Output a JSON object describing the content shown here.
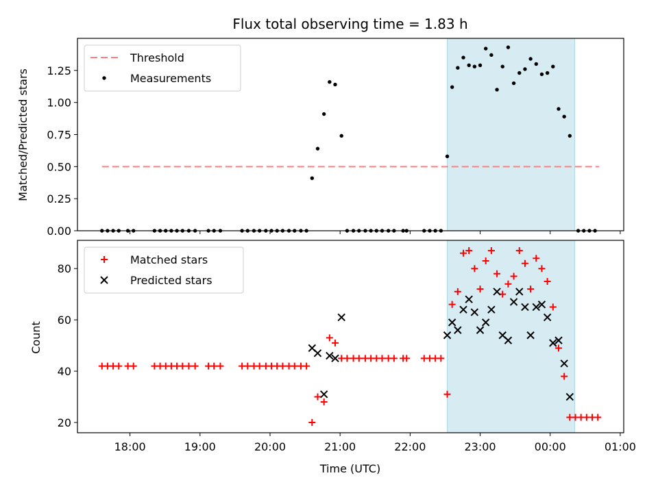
{
  "chart_data": [
    {
      "type": "scatter",
      "title": "Flux total observing time = 1.83 h",
      "xlabel": "",
      "ylabel": "Matched/Predicted stars",
      "x_unit": "hours after 00:00 UTC (next day wraps past 24)",
      "xlim": [
        17.25,
        25.05
      ],
      "ylim": [
        0,
        1.5
      ],
      "yticks": [
        0,
        0.25,
        0.5,
        0.75,
        1.0,
        1.25
      ],
      "ytick_labels": [
        "0.00",
        "0.25",
        "0.50",
        "0.75",
        "1.00",
        "1.25"
      ],
      "legend": {
        "placement": "top-left",
        "entries": [
          "Threshold",
          "Measurements"
        ]
      },
      "shaded_interval": {
        "from": 22.53,
        "to": 24.35,
        "color": "#add8e6"
      },
      "threshold": {
        "name": "Threshold",
        "value": 0.5,
        "x_from": 17.6,
        "x_to": 24.7,
        "color": "#ff7f7f",
        "style": "dashed"
      },
      "series": [
        {
          "name": "Measurements",
          "marker": "dot",
          "color": "#000000",
          "points": [
            [
              17.6,
              0
            ],
            [
              17.68,
              0
            ],
            [
              17.76,
              0
            ],
            [
              17.84,
              0
            ],
            [
              17.97,
              0
            ],
            [
              18.05,
              0
            ],
            [
              18.35,
              0
            ],
            [
              18.43,
              0
            ],
            [
              18.51,
              0
            ],
            [
              18.59,
              0
            ],
            [
              18.67,
              0
            ],
            [
              18.75,
              0
            ],
            [
              18.84,
              0
            ],
            [
              18.93,
              0
            ],
            [
              19.12,
              0
            ],
            [
              19.2,
              0
            ],
            [
              19.29,
              0
            ],
            [
              19.6,
              0
            ],
            [
              19.68,
              0
            ],
            [
              19.77,
              0
            ],
            [
              19.85,
              0
            ],
            [
              19.94,
              0
            ],
            [
              20.02,
              0
            ],
            [
              20.1,
              0
            ],
            [
              20.18,
              0
            ],
            [
              20.27,
              0
            ],
            [
              20.35,
              0
            ],
            [
              20.44,
              0
            ],
            [
              20.52,
              0
            ],
            [
              20.6,
              0.41
            ],
            [
              20.68,
              0.64
            ],
            [
              20.77,
              0.91
            ],
            [
              20.85,
              1.16
            ],
            [
              20.93,
              1.14
            ],
            [
              21.02,
              0.74
            ],
            [
              21.1,
              0
            ],
            [
              21.19,
              0
            ],
            [
              21.27,
              0
            ],
            [
              21.36,
              0
            ],
            [
              21.44,
              0
            ],
            [
              21.52,
              0
            ],
            [
              21.6,
              0
            ],
            [
              21.69,
              0
            ],
            [
              21.77,
              0
            ],
            [
              21.9,
              0
            ],
            [
              21.95,
              0
            ],
            [
              22.2,
              0
            ],
            [
              22.28,
              0
            ],
            [
              22.36,
              0
            ],
            [
              22.44,
              0
            ],
            [
              22.53,
              0.58
            ],
            [
              22.6,
              1.12
            ],
            [
              22.68,
              1.27
            ],
            [
              22.76,
              1.35
            ],
            [
              22.84,
              1.29
            ],
            [
              22.92,
              1.28
            ],
            [
              23.0,
              1.29
            ],
            [
              23.08,
              1.42
            ],
            [
              23.16,
              1.37
            ],
            [
              23.24,
              1.1
            ],
            [
              23.32,
              1.28
            ],
            [
              23.4,
              1.43
            ],
            [
              23.48,
              1.15
            ],
            [
              23.56,
              1.23
            ],
            [
              23.64,
              1.26
            ],
            [
              23.72,
              1.34
            ],
            [
              23.8,
              1.3
            ],
            [
              23.88,
              1.22
            ],
            [
              23.96,
              1.23
            ],
            [
              24.04,
              1.28
            ],
            [
              24.12,
              0.95
            ],
            [
              24.2,
              0.89
            ],
            [
              24.28,
              0.74
            ],
            [
              24.4,
              0
            ],
            [
              24.48,
              0
            ],
            [
              24.56,
              0
            ],
            [
              24.64,
              0
            ]
          ]
        }
      ]
    },
    {
      "type": "scatter",
      "title": "",
      "xlabel": "Time (UTC)",
      "ylabel": "Count",
      "x_unit": "hours after 00:00 UTC (next day wraps past 24)",
      "xlim": [
        17.25,
        25.05
      ],
      "ylim": [
        16,
        91
      ],
      "yticks": [
        20,
        40,
        60,
        80
      ],
      "ytick_labels": [
        "20",
        "40",
        "60",
        "80"
      ],
      "xticks": [
        18,
        19,
        20,
        21,
        22,
        23,
        24,
        25
      ],
      "xtick_labels": [
        "18:00",
        "19:00",
        "20:00",
        "21:00",
        "22:00",
        "23:00",
        "00:00",
        "01:00"
      ],
      "legend": {
        "placement": "top-left",
        "entries": [
          "Matched stars",
          "Predicted stars"
        ]
      },
      "shaded_interval": {
        "from": 22.53,
        "to": 24.35,
        "color": "#add8e6"
      },
      "series": [
        {
          "name": "Matched stars",
          "marker": "plus",
          "color": "#ff0000",
          "points": [
            [
              17.6,
              42
            ],
            [
              17.68,
              42
            ],
            [
              17.76,
              42
            ],
            [
              17.84,
              42
            ],
            [
              17.97,
              42
            ],
            [
              18.05,
              42
            ],
            [
              18.35,
              42
            ],
            [
              18.43,
              42
            ],
            [
              18.51,
              42
            ],
            [
              18.59,
              42
            ],
            [
              18.67,
              42
            ],
            [
              18.75,
              42
            ],
            [
              18.84,
              42
            ],
            [
              18.93,
              42
            ],
            [
              19.12,
              42
            ],
            [
              19.2,
              42
            ],
            [
              19.29,
              42
            ],
            [
              19.6,
              42
            ],
            [
              19.68,
              42
            ],
            [
              19.77,
              42
            ],
            [
              19.85,
              42
            ],
            [
              19.94,
              42
            ],
            [
              20.02,
              42
            ],
            [
              20.1,
              42
            ],
            [
              20.18,
              42
            ],
            [
              20.27,
              42
            ],
            [
              20.35,
              42
            ],
            [
              20.44,
              42
            ],
            [
              20.52,
              42
            ],
            [
              20.6,
              20
            ],
            [
              20.68,
              30
            ],
            [
              20.77,
              28
            ],
            [
              20.85,
              53
            ],
            [
              20.93,
              51
            ],
            [
              21.02,
              45
            ],
            [
              21.1,
              45
            ],
            [
              21.19,
              45
            ],
            [
              21.27,
              45
            ],
            [
              21.36,
              45
            ],
            [
              21.44,
              45
            ],
            [
              21.52,
              45
            ],
            [
              21.6,
              45
            ],
            [
              21.69,
              45
            ],
            [
              21.77,
              45
            ],
            [
              21.9,
              45
            ],
            [
              21.95,
              45
            ],
            [
              22.2,
              45
            ],
            [
              22.28,
              45
            ],
            [
              22.36,
              45
            ],
            [
              22.44,
              45
            ],
            [
              22.53,
              31
            ],
            [
              22.6,
              66
            ],
            [
              22.68,
              71
            ],
            [
              22.76,
              86
            ],
            [
              22.84,
              87
            ],
            [
              22.92,
              80
            ],
            [
              23.0,
              72
            ],
            [
              23.08,
              83
            ],
            [
              23.16,
              87
            ],
            [
              23.24,
              78
            ],
            [
              23.32,
              70
            ],
            [
              23.4,
              74
            ],
            [
              23.48,
              77
            ],
            [
              23.56,
              87
            ],
            [
              23.64,
              82
            ],
            [
              23.72,
              72
            ],
            [
              23.8,
              84
            ],
            [
              23.88,
              80
            ],
            [
              23.96,
              75
            ],
            [
              24.04,
              65
            ],
            [
              24.12,
              49
            ],
            [
              24.2,
              38
            ],
            [
              24.28,
              22
            ],
            [
              24.36,
              22
            ],
            [
              24.44,
              22
            ],
            [
              24.52,
              22
            ],
            [
              24.6,
              22
            ],
            [
              24.68,
              22
            ]
          ]
        },
        {
          "name": "Predicted stars",
          "marker": "x",
          "color": "#000000",
          "points": [
            [
              20.6,
              49
            ],
            [
              20.68,
              47
            ],
            [
              20.77,
              31
            ],
            [
              20.85,
              46
            ],
            [
              20.93,
              45
            ],
            [
              21.02,
              61
            ],
            [
              22.53,
              54
            ],
            [
              22.6,
              59
            ],
            [
              22.68,
              56
            ],
            [
              22.76,
              64
            ],
            [
              22.84,
              68
            ],
            [
              22.92,
              63
            ],
            [
              23.0,
              56
            ],
            [
              23.08,
              59
            ],
            [
              23.16,
              64
            ],
            [
              23.24,
              71
            ],
            [
              23.32,
              54
            ],
            [
              23.4,
              52
            ],
            [
              23.48,
              67
            ],
            [
              23.56,
              71
            ],
            [
              23.64,
              65
            ],
            [
              23.72,
              54
            ],
            [
              23.8,
              65
            ],
            [
              23.88,
              66
            ],
            [
              23.96,
              61
            ],
            [
              24.04,
              51
            ],
            [
              24.12,
              52
            ],
            [
              24.2,
              43
            ],
            [
              24.28,
              30
            ]
          ]
        }
      ]
    }
  ]
}
